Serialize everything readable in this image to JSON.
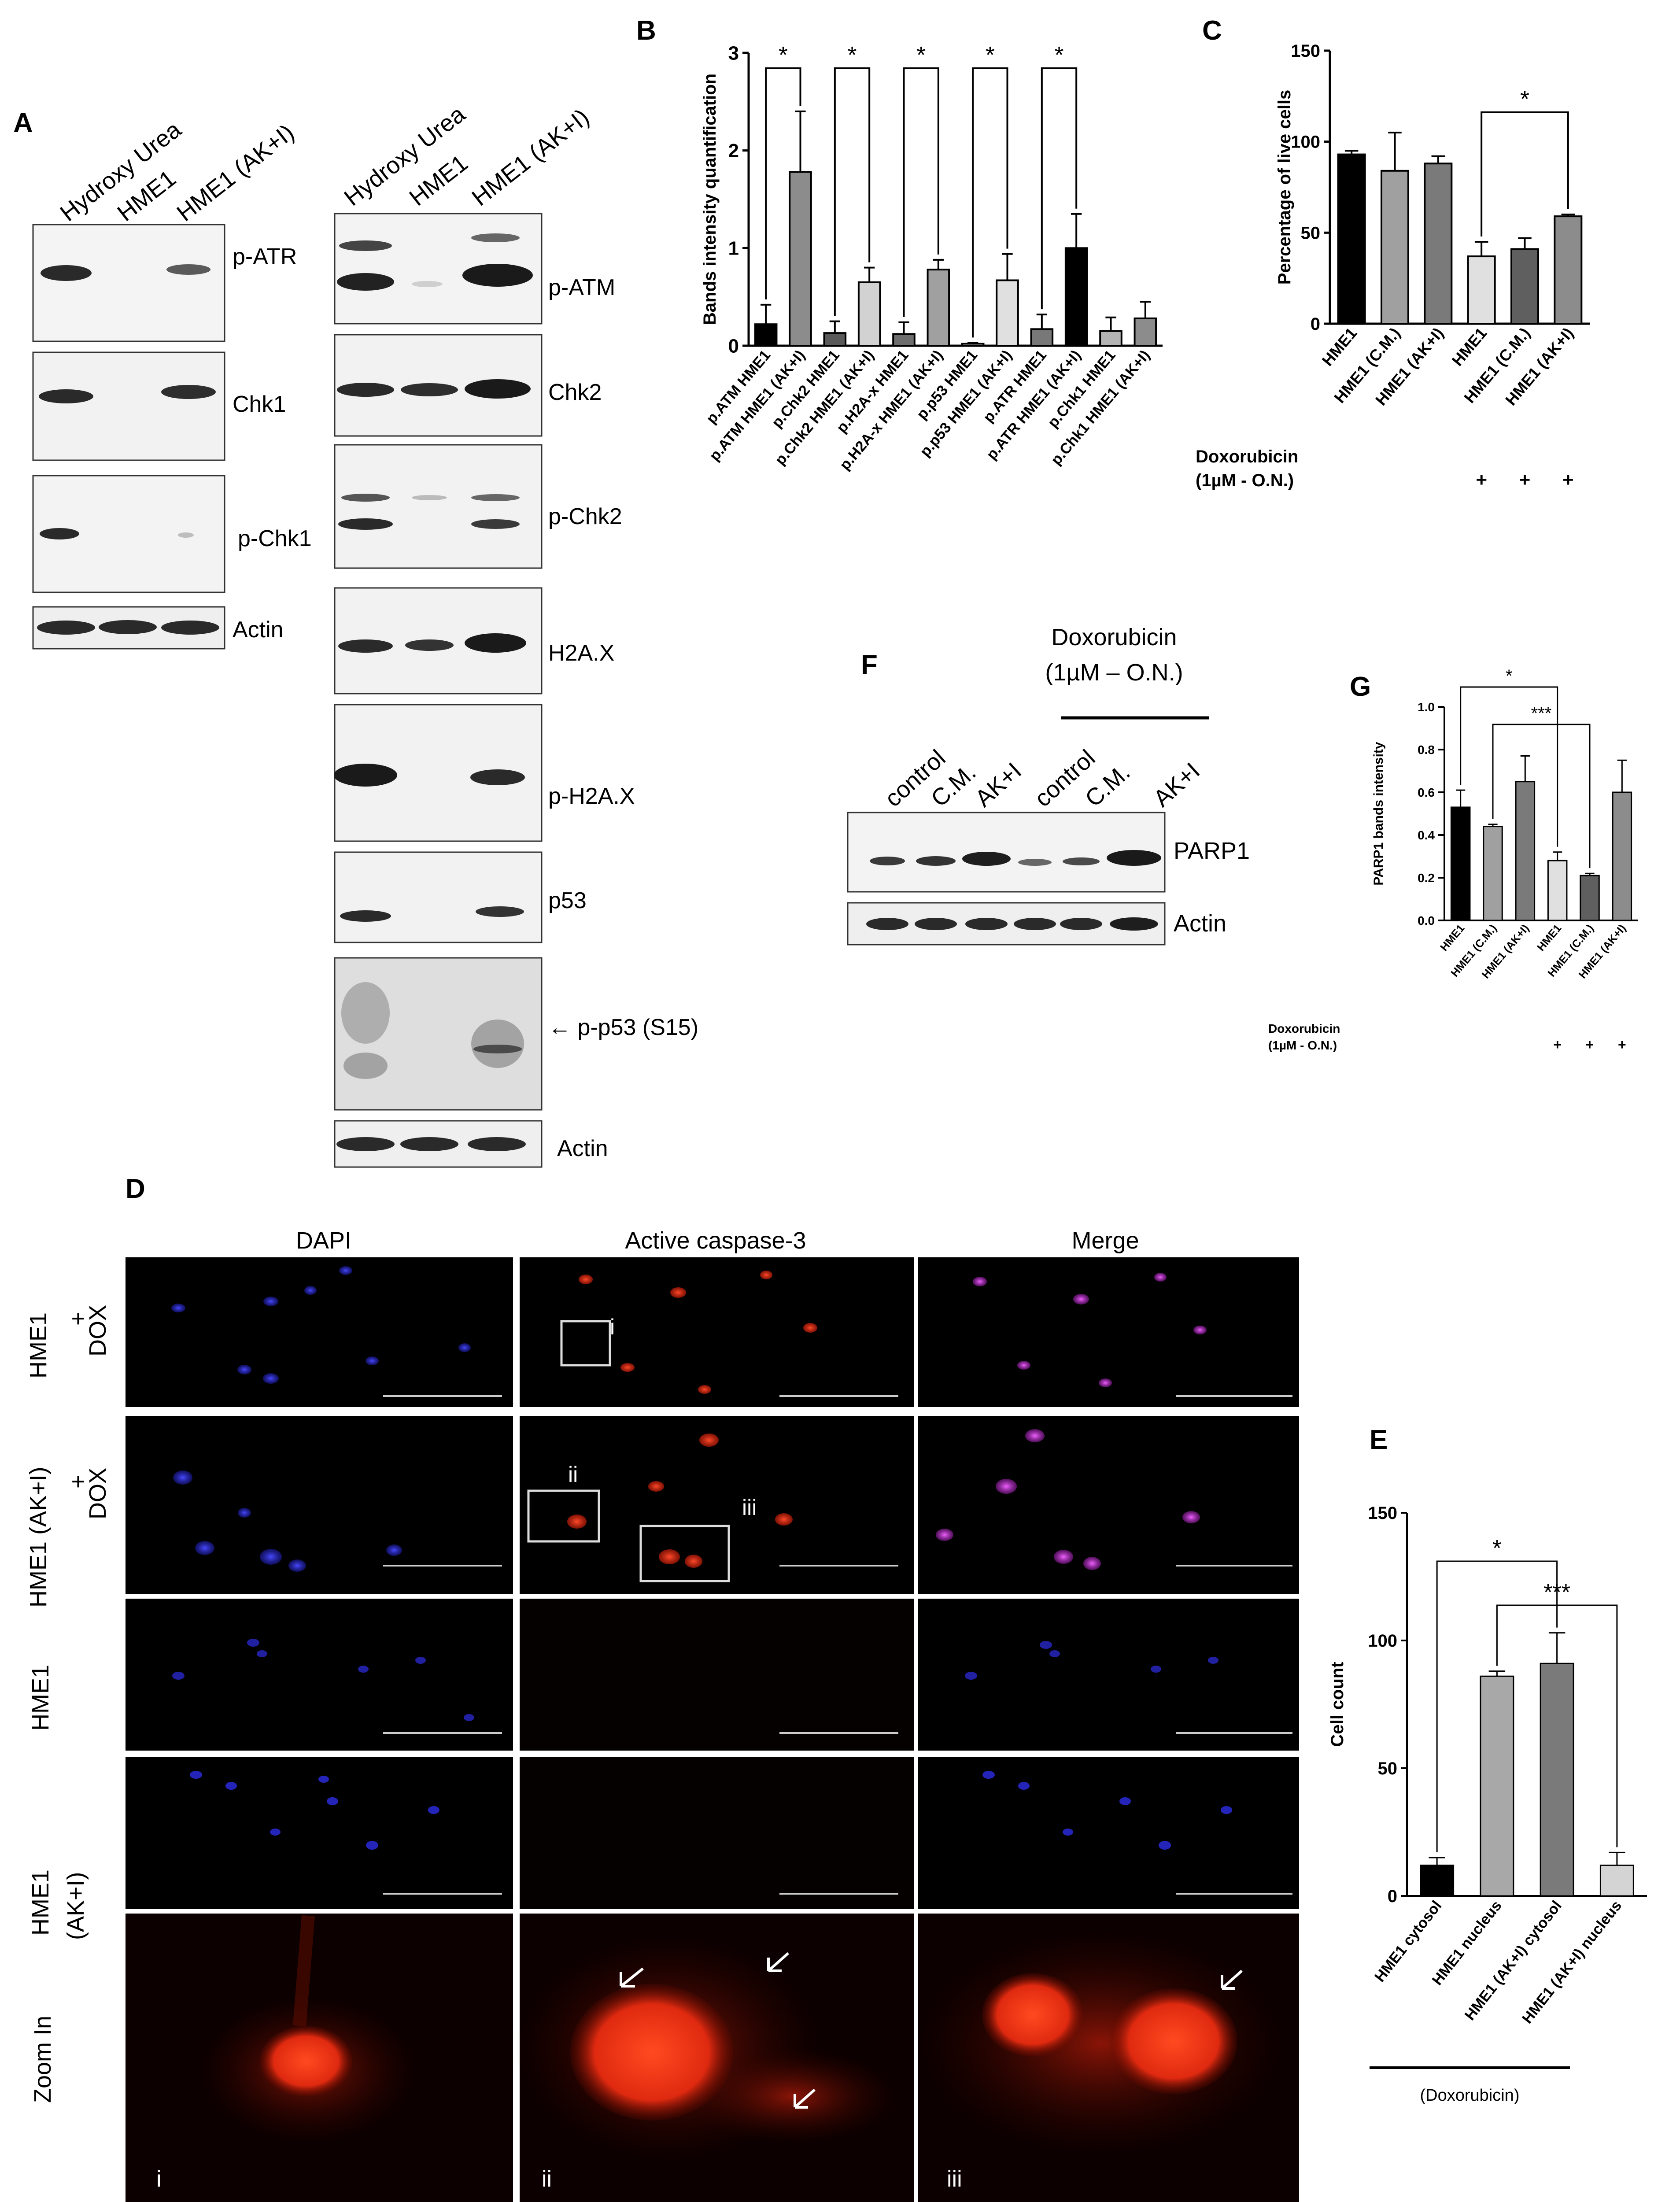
{
  "panel_labels": {
    "a": "A",
    "b": "B",
    "c": "C",
    "d": "D",
    "e": "E",
    "f": "F",
    "g": "G"
  },
  "blot_a_left": {
    "lanes": [
      "Hydroxy Urea",
      "HME1",
      "HME1 (AK+I)"
    ],
    "rows": [
      "p-ATR",
      "Chk1",
      "p-Chk1",
      "Actin"
    ]
  },
  "blot_a_right": {
    "lanes": [
      "Hydroxy Urea",
      "HME1",
      "HME1 (AK+I)"
    ],
    "rows": [
      "p-ATM",
      "Chk2",
      "p-Chk2",
      "H2A.X",
      "p-H2A.X",
      "p53",
      "← p-p53 (S15)",
      "Actin"
    ]
  },
  "blot_f": {
    "header": [
      "Doxorubicin",
      "(1µM – O.N.)"
    ],
    "lanes": [
      "control",
      "C.M.",
      "AK+I",
      "control",
      "C.M.",
      "AK+I"
    ],
    "rows": [
      "PARP1",
      "Actin"
    ]
  },
  "microscopy_d": {
    "columns": [
      "DAPI",
      "Active caspase-3",
      "Merge"
    ],
    "row_labels": [
      [
        "HME1",
        "+",
        "DOX"
      ],
      [
        "HME1 (AK+I)",
        "+",
        "DOX"
      ],
      [
        "HME1"
      ],
      [
        "HME1",
        "(AK+I)"
      ],
      [
        "Zoom In"
      ]
    ],
    "boxes": [
      "i",
      "ii",
      "iii"
    ],
    "zoom_labels": [
      "i",
      "ii",
      "iii"
    ],
    "colors": {
      "dapi": "#2a2ad8",
      "caspase": "#e8301c",
      "merge": "#c83ad8",
      "background": "#000000"
    }
  },
  "chart_data": [
    {
      "panel": "B",
      "type": "bar",
      "ylabel": "Bands intensity quantification",
      "ylim": [
        0,
        3
      ],
      "yticks": [
        0,
        1,
        2,
        3
      ],
      "categories": [
        "p.ATM HME1",
        "p.ATM HME1 (AK+I)",
        "p.Chk2 HME1",
        "p.Chk2 HME1 (AK+I)",
        "p.H2A-x HME1",
        "p.H2A-x HME1 (AK+I)",
        "p.p53 HME1",
        "p.p53 HME1 (AK+I)",
        "p.ATR HME1",
        "p.ATR HME1 (AK+I)",
        "p.Chk1 HME1",
        "p.Chk1 HME1 (AK+I)"
      ],
      "values": [
        0.22,
        1.78,
        0.13,
        0.65,
        0.12,
        0.78,
        0.02,
        0.67,
        0.17,
        1.0,
        0.15,
        0.28
      ],
      "errors": [
        0.2,
        0.62,
        0.12,
        0.15,
        0.12,
        0.1,
        0.01,
        0.27,
        0.15,
        0.35,
        0.14,
        0.17
      ],
      "colors": [
        "#000000",
        "#8c8c8c",
        "#5a5a5a",
        "#d2d2d2",
        "#6e6e6e",
        "#a0a0a0",
        "#ffffff",
        "#e0e0e0",
        "#787878",
        "#000000",
        "#b4b4b4",
        "#8c8c8c"
      ],
      "significance": [
        {
          "between": [
            0,
            1
          ],
          "label": "*"
        },
        {
          "between": [
            2,
            3
          ],
          "label": "*"
        },
        {
          "between": [
            4,
            5
          ],
          "label": "*"
        },
        {
          "between": [
            6,
            7
          ],
          "label": "*"
        },
        {
          "between": [
            8,
            9
          ],
          "label": "*"
        }
      ]
    },
    {
      "panel": "C",
      "type": "bar",
      "ylabel": "Percentage of live cells",
      "ylim": [
        0,
        150
      ],
      "yticks": [
        0,
        50,
        100,
        150
      ],
      "categories": [
        "HME1",
        "HME1 (C.M.)",
        "HME1 (AK+I)",
        "HME1",
        "HME1 (C.M.)",
        "HME1 (AK+I)"
      ],
      "values": [
        93,
        84,
        88,
        37,
        41,
        59
      ],
      "errors": [
        2,
        21,
        4,
        8,
        6,
        1
      ],
      "colors": [
        "#000000",
        "#a0a0a0",
        "#7a7a7a",
        "#e0e0e0",
        "#5f5f5f",
        "#8c8c8c"
      ],
      "significance": [
        {
          "between": [
            3,
            5
          ],
          "label": "*"
        }
      ],
      "treatment": {
        "label": [
          "Doxorubicin",
          "(1µM - O.N.)"
        ],
        "marks": [
          "",
          "",
          "",
          "+",
          "+",
          "+"
        ]
      }
    },
    {
      "panel": "G",
      "type": "bar",
      "ylabel": "PARP1 bands intensity",
      "ylim": [
        0,
        1.0
      ],
      "yticks": [
        "0.0",
        "0.2",
        "0.4",
        "0.6",
        "0.8",
        "1.0"
      ],
      "categories": [
        "HME1",
        "HME1 (C.M.)",
        "HME1 (AK+I)",
        "HME1",
        "HME1 (C.M.)",
        "HME1 (AK+I)"
      ],
      "values": [
        0.53,
        0.44,
        0.65,
        0.28,
        0.21,
        0.6
      ],
      "errors": [
        0.08,
        0.01,
        0.12,
        0.04,
        0.01,
        0.15
      ],
      "colors": [
        "#000000",
        "#a0a0a0",
        "#7a7a7a",
        "#e0e0e0",
        "#5f5f5f",
        "#8c8c8c"
      ],
      "significance": [
        {
          "between": [
            0,
            3
          ],
          "label": "*"
        },
        {
          "between": [
            1,
            4
          ],
          "label": "***"
        }
      ],
      "treatment": {
        "label": [
          "Doxorubicin",
          "(1µM - O.N.)"
        ],
        "marks": [
          "",
          "",
          "",
          "+",
          "+",
          "+"
        ]
      }
    },
    {
      "panel": "E",
      "type": "bar",
      "ylabel": "Cell count",
      "ylim": [
        0,
        150
      ],
      "yticks": [
        0,
        50,
        100,
        150
      ],
      "categories": [
        "HME1 cytosol",
        "HME1 nucleus",
        "HME1 (AK+I) cytosol",
        "HME1 (AK+I) nucleus"
      ],
      "values": [
        12,
        86,
        91,
        12
      ],
      "errors": [
        3,
        2,
        12,
        5
      ],
      "colors": [
        "#000000",
        "#a8a8a8",
        "#7a7a7a",
        "#d4d4d4"
      ],
      "significance": [
        {
          "between": [
            0,
            2
          ],
          "label": "*"
        },
        {
          "between": [
            1,
            3
          ],
          "label": "***"
        }
      ],
      "group_label": "(Doxorubicin)"
    }
  ]
}
